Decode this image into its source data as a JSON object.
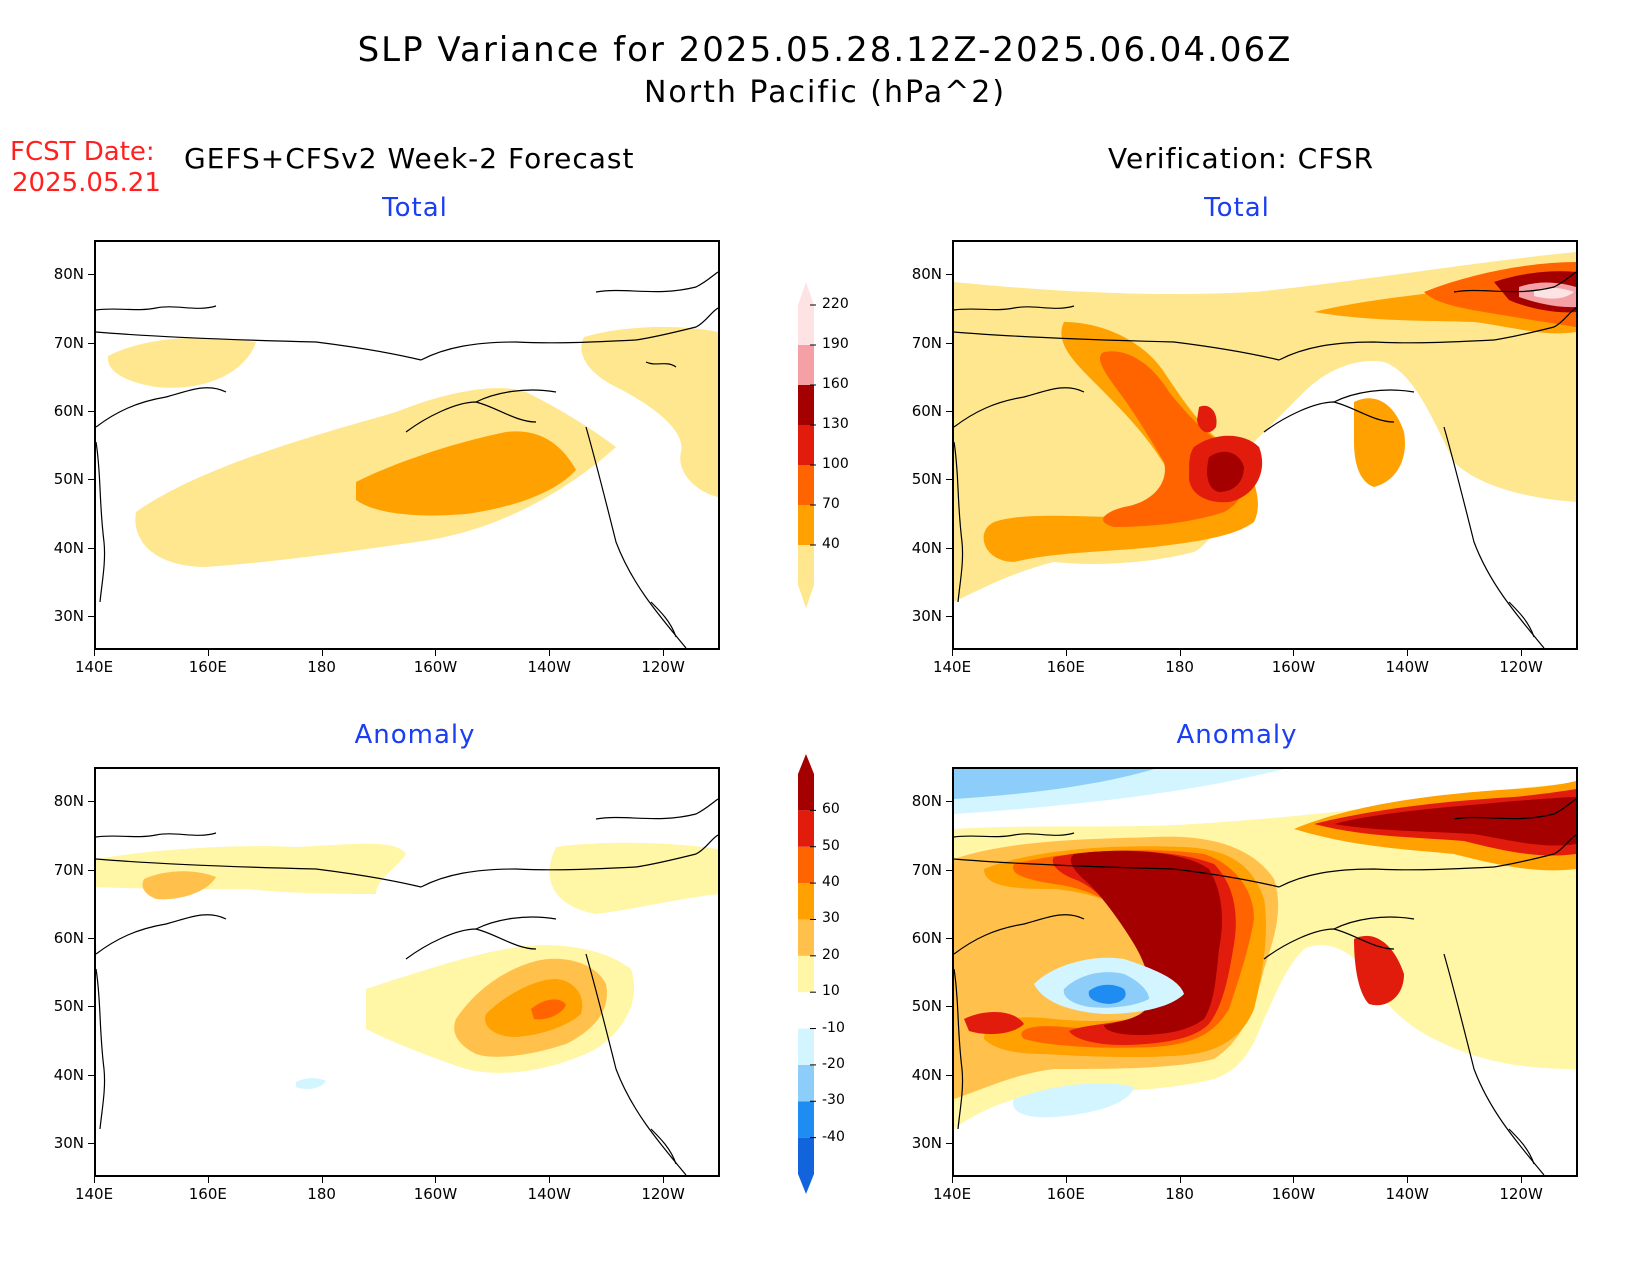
{
  "header": {
    "title": "SLP Variance for 2025.05.28.12Z-2025.06.04.06Z",
    "subtitle": "North Pacific (hPa^2)",
    "fcst_label": "FCST Date:",
    "fcst_date": "2025.05.21",
    "left_heading": "GEFS+CFSv2 Week-2 Forecast",
    "right_heading": "Verification: CFSR"
  },
  "panels": [
    {
      "id": "forecast-total",
      "title": "Total"
    },
    {
      "id": "verification-total",
      "title": "Total"
    },
    {
      "id": "forecast-anomaly",
      "title": "Anomaly"
    },
    {
      "id": "verification-anomaly",
      "title": "Anomaly"
    }
  ],
  "axes": {
    "lat_labels": [
      "80N",
      "70N",
      "60N",
      "50N",
      "40N",
      "30N"
    ],
    "lat_values": [
      80,
      70,
      60,
      50,
      40,
      30
    ],
    "lon_labels": [
      "140E",
      "160E",
      "180",
      "160W",
      "140W",
      "120W"
    ],
    "lon_values": [
      140,
      160,
      180,
      200,
      220,
      240
    ],
    "lon_range": [
      140,
      250
    ],
    "lat_range": [
      25,
      85
    ]
  },
  "colorbars": {
    "total": {
      "labels": [
        "40",
        "70",
        "100",
        "130",
        "160",
        "190",
        "220"
      ],
      "colors": [
        "#fee78f",
        "#ffa100",
        "#ff6400",
        "#e11c0c",
        "#a50000",
        "#f4a0a4",
        "#fde3e3"
      ]
    },
    "anomaly": {
      "labels": [
        "-40",
        "-30",
        "-20",
        "-10",
        "10",
        "20",
        "30",
        "40",
        "50",
        "60"
      ],
      "colors": [
        "#1264dc",
        "#1e8cf0",
        "#8ccdfa",
        "#d2f5ff",
        "#ffffff",
        "#fff6a6",
        "#ffc14c",
        "#ffa100",
        "#ff6400",
        "#e11c0c",
        "#a50000"
      ]
    }
  }
}
